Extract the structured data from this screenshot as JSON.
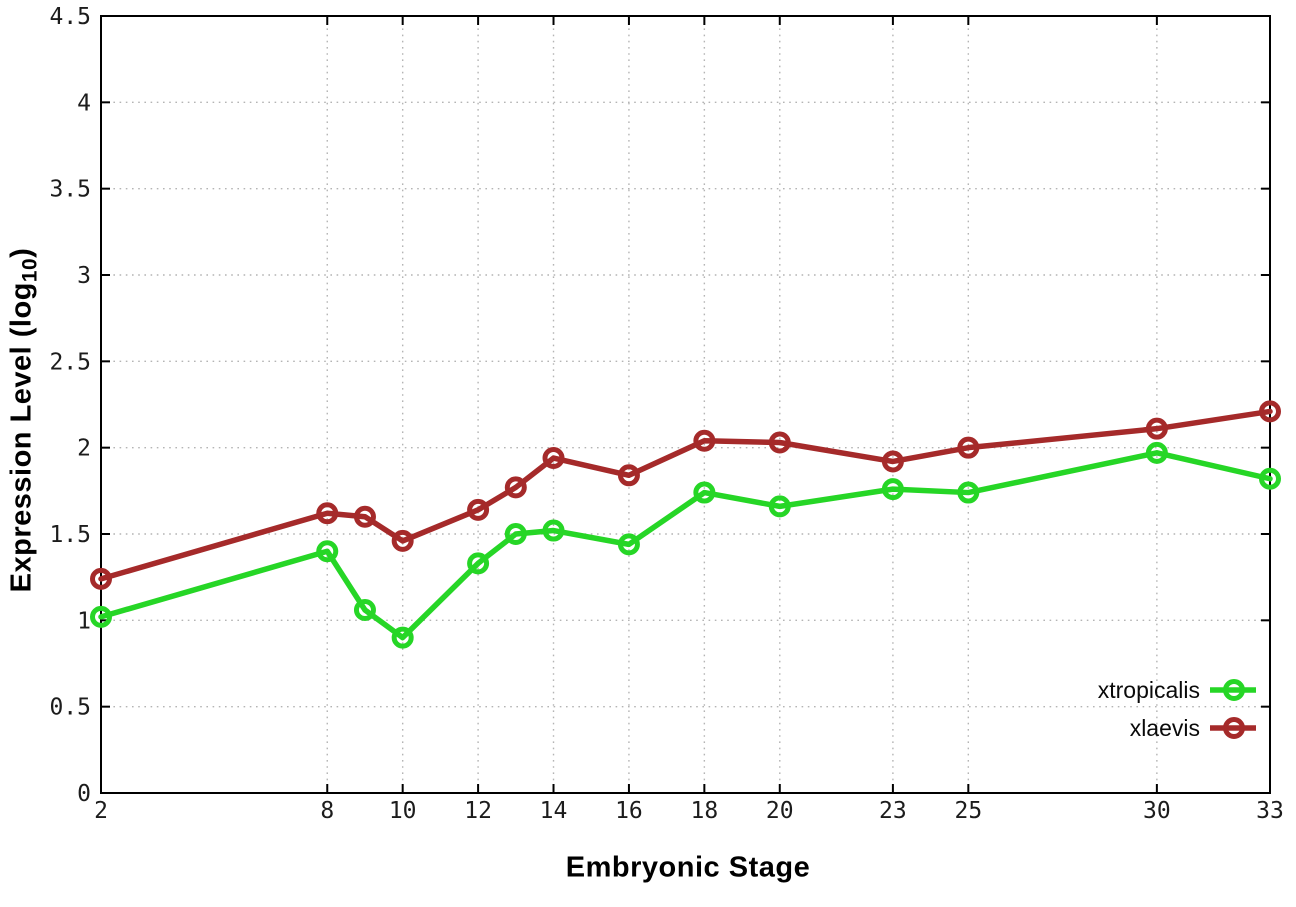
{
  "chart_data": {
    "type": "line",
    "title": "",
    "xlabel": "Embryonic Stage",
    "ylabel": "Expression Level (log10)",
    "ylabel_parts": {
      "prefix": "Expression Level (log",
      "sub": "10",
      "suffix": ")"
    },
    "x": [
      2,
      8,
      9,
      10,
      12,
      13,
      14,
      16,
      18,
      20,
      23,
      25,
      30,
      33
    ],
    "xticks": [
      2,
      8,
      10,
      12,
      14,
      16,
      18,
      20,
      23,
      25,
      30,
      33
    ],
    "yticks": [
      0,
      0.5,
      1,
      1.5,
      2,
      2.5,
      3,
      3.5,
      4,
      4.5
    ],
    "xlim": [
      2,
      33
    ],
    "ylim": [
      0,
      4.5
    ],
    "grid": true,
    "legend_position": "inside-bottom-right",
    "series": [
      {
        "name": "xtropicalis",
        "color": "#26d626",
        "marker": "open-circle",
        "values": [
          1.02,
          1.4,
          1.06,
          0.9,
          1.33,
          1.5,
          1.52,
          1.44,
          1.74,
          1.66,
          1.76,
          1.74,
          1.97,
          1.82
        ]
      },
      {
        "name": "xlaevis",
        "color": "#a52a2a",
        "marker": "open-circle",
        "values": [
          1.24,
          1.62,
          1.6,
          1.46,
          1.64,
          1.77,
          1.94,
          1.84,
          2.04,
          2.03,
          1.92,
          2.0,
          2.11,
          2.21
        ]
      }
    ],
    "colors": {
      "border": "#000000",
      "grid": "#b4b4b4",
      "tick_label": "#1c1c1c"
    }
  }
}
